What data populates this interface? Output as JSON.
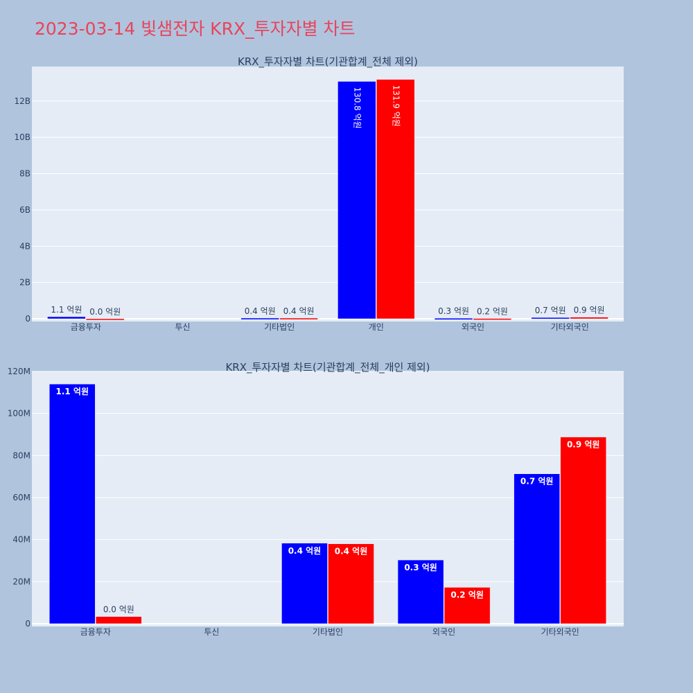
{
  "title": "2023-03-14 빛샘전자 KRX_투자자별 차트",
  "chart_data": [
    {
      "type": "bar",
      "title": "KRX_투자자별 차트(기관합계_전체 제외)",
      "categories": [
        "금융투자",
        "투신",
        "기타법인",
        "개인",
        "외국인",
        "기타외국인"
      ],
      "ylim": [
        0,
        13900000000
      ],
      "ytick_values": [
        0,
        2000000000,
        4000000000,
        6000000000,
        8000000000,
        10000000000,
        12000000000
      ],
      "ytick_labels": [
        "0",
        "2B",
        "4B",
        "6B",
        "8B",
        "10B",
        "12B"
      ],
      "grid": true,
      "series": [
        {
          "color": "#0000ff",
          "values": [
            114000000,
            0,
            38000000,
            13080000000,
            30000000,
            71000000
          ],
          "labels": [
            "1.1 억원",
            "",
            "0.4 억원",
            "130.8 억원",
            "0.3 억원",
            "0.7 억원"
          ]
        },
        {
          "color": "#ff0000",
          "values": [
            3000000,
            0,
            38000000,
            13190000000,
            17000000,
            89000000
          ],
          "labels": [
            "0.0 억원",
            "",
            "0.4 억원",
            "131.9 억원",
            "0.2 억원",
            "0.9 억원"
          ]
        }
      ]
    },
    {
      "type": "bar",
      "title": "KRX_투자자별 차트(기관합계_전체_개인 제외)",
      "categories": [
        "금융투자",
        "투신",
        "기타법인",
        "외국인",
        "기타외국인"
      ],
      "ylim": [
        0,
        120000000
      ],
      "ytick_values": [
        0,
        20000000,
        40000000,
        60000000,
        80000000,
        100000000,
        120000000
      ],
      "ytick_labels": [
        "0",
        "20M",
        "40M",
        "60M",
        "80M",
        "100M",
        "120M"
      ],
      "grid": true,
      "series": [
        {
          "color": "#0000ff",
          "values": [
            114000000,
            0,
            38300000,
            30300000,
            71300000
          ],
          "labels": [
            "1.1 억원",
            "",
            "0.4 억원",
            "0.3 억원",
            "0.7 억원"
          ]
        },
        {
          "color": "#ff0000",
          "values": [
            3400000,
            0,
            38000000,
            17300000,
            88800000
          ],
          "labels": [
            "0.0 억원",
            "",
            "0.4 억원",
            "0.2 억원",
            "0.9 억원"
          ]
        }
      ]
    }
  ]
}
